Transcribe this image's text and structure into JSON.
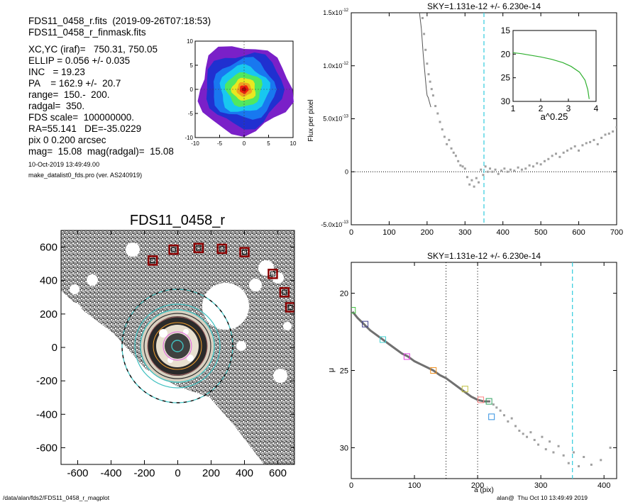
{
  "info": {
    "line1": "FDS11_0458_r.fits  (2019-09-26T07:18:53)",
    "line2": "FDS11_0458_r_finmask.fits",
    "line3": "XC,YC (iraf)=   750.31, 750.05",
    "line4": "ELLIP = 0.056 +/- 0.035",
    "line5": "INC   = 19.23",
    "line6": "PA    = 162.9 +/-  20.7",
    "line7": "range=  150.-  200.",
    "line8": "radgal=  350.",
    "line9": "FDS scale=  100000000.",
    "line10": "RA=55.141   DE=-35.0229",
    "line11": "pix 0 0.200 arcsec",
    "line12": "mag=  15.08  mag(radgal)=  15.08",
    "date": "10-Oct-2019 13:49:49.00",
    "prog": "make_datalist0_fds.pro (ver. AS240919)"
  },
  "footer": {
    "left": "/data/alan/fds2/FDS11_0458_r_magplot",
    "right": "alan@  Thu Oct 10 13:49:49 2019"
  },
  "chart_data": [
    {
      "id": "thumb",
      "type": "heatmap",
      "xlim": [
        -10,
        10
      ],
      "ylim": [
        -10,
        10
      ],
      "xticks": [
        "-10",
        "-5",
        "0",
        "5",
        "10"
      ],
      "yticks": [
        "10",
        "5",
        "0",
        "-5",
        "-10"
      ],
      "levels": [
        "#7a20c8",
        "#2030d0",
        "#1878f0",
        "#18c8f0",
        "#50e860",
        "#e8e820",
        "#f0a020",
        "#f02010",
        "#b00000"
      ]
    },
    {
      "id": "image",
      "type": "heatmap",
      "title": "FDS11_0458_r",
      "xlim": [
        -700,
        700
      ],
      "ylim": [
        -700,
        700
      ],
      "xticks": [
        "-600",
        "-400",
        "-200",
        "0",
        "200",
        "400",
        "600"
      ],
      "yticks": [
        "600",
        "400",
        "200",
        "0",
        "-200",
        "-400",
        "-600"
      ]
    },
    {
      "id": "sky",
      "type": "scatter",
      "title": "SKY=1.131e-12 +/- 6.230e-14",
      "ylabel": "Flux per pixel",
      "xlim": [
        0,
        700
      ],
      "ylim": [
        -5e-13,
        1.5e-12
      ],
      "xticks": [
        "0",
        "100",
        "200",
        "300",
        "400",
        "500",
        "600",
        "700"
      ],
      "yticks": [
        {
          "value": 1.5e-12,
          "mant": "1.5x10",
          "exp": "-12"
        },
        {
          "value": 1e-12,
          "mant": "1.0x10",
          "exp": "-12"
        },
        {
          "value": 5e-13,
          "mant": "5.0x10",
          "exp": "-13"
        },
        {
          "value": 0,
          "mant": "0",
          "exp": ""
        },
        {
          "value": -5e-13,
          "mant": "-5.0x10",
          "exp": "-13"
        }
      ],
      "vline": 350,
      "line": [
        [
          180,
          1.5e-12
        ],
        [
          185,
          1.35e-12
        ],
        [
          190,
          1.1e-12
        ],
        [
          195,
          9e-13
        ],
        [
          198,
          7.8e-13
        ],
        [
          200,
          7.2e-13
        ],
        [
          203,
          7e-13
        ],
        [
          206,
          6.6e-13
        ],
        [
          210,
          6.1e-13
        ]
      ],
      "points": [
        [
          188,
          1.45e-12
        ],
        [
          192,
          1.3e-12
        ],
        [
          196,
          1.15e-12
        ],
        [
          200,
          1.02e-12
        ],
        [
          204,
          9.2e-13
        ],
        [
          208,
          8.5e-13
        ],
        [
          212,
          7.8e-13
        ],
        [
          216,
          7.2e-13
        ],
        [
          222,
          6.2e-13
        ],
        [
          228,
          5.5e-13
        ],
        [
          234,
          4.7e-13
        ],
        [
          240,
          4e-13
        ],
        [
          246,
          3.3e-13
        ],
        [
          252,
          2.6e-13
        ],
        [
          258,
          3e-13
        ],
        [
          264,
          2.2e-13
        ],
        [
          270,
          1.8e-13
        ],
        [
          276,
          1.5e-13
        ],
        [
          282,
          1e-13
        ],
        [
          288,
          6e-14
        ],
        [
          294,
          5e-14
        ],
        [
          300,
          3e-14
        ],
        [
          306,
          -5e-14
        ],
        [
          312,
          -1.2e-13
        ],
        [
          318,
          -8e-14
        ],
        [
          324,
          -1.4e-13
        ],
        [
          330,
          -6e-14
        ],
        [
          336,
          -1e-13
        ],
        [
          342,
          2e-14
        ],
        [
          348,
          -3e-14
        ],
        [
          354,
          5e-14
        ],
        [
          360,
          0.0
        ],
        [
          366,
          3e-14
        ],
        [
          372,
          0.0
        ],
        [
          380,
          2e-14
        ],
        [
          388,
          -2e-14
        ],
        [
          396,
          1e-14
        ],
        [
          404,
          3e-14
        ],
        [
          412,
          0.0
        ],
        [
          420,
          2e-14
        ],
        [
          430,
          1e-14
        ],
        [
          440,
          4e-14
        ],
        [
          450,
          2e-14
        ],
        [
          460,
          3e-14
        ],
        [
          470,
          6e-14
        ],
        [
          480,
          5e-14
        ],
        [
          490,
          8e-14
        ],
        [
          500,
          7e-14
        ],
        [
          510,
          1e-13
        ],
        [
          520,
          1.2e-13
        ],
        [
          530,
          1.5e-13
        ],
        [
          540,
          1.7e-13
        ],
        [
          550,
          1.4e-13
        ],
        [
          560,
          1.8e-13
        ],
        [
          570,
          2e-13
        ],
        [
          580,
          2.2e-13
        ],
        [
          590,
          2.4e-13
        ],
        [
          600,
          2e-13
        ],
        [
          610,
          2.5e-13
        ],
        [
          620,
          2.7e-13
        ],
        [
          630,
          2.8e-13
        ],
        [
          640,
          3e-13
        ],
        [
          650,
          2.6e-13
        ],
        [
          660,
          3.2e-13
        ],
        [
          670,
          3.5e-13
        ],
        [
          680,
          3.6e-13
        ],
        [
          690,
          3.8e-13
        ],
        [
          700,
          4.2e-13
        ]
      ],
      "inset": {
        "xlabel": "a^0.25",
        "xlim": [
          1,
          4
        ],
        "ylim": [
          15,
          30
        ],
        "xticks": [
          "1",
          "2",
          "3",
          "4"
        ],
        "yticks": [
          "15",
          "20",
          "25",
          "30"
        ],
        "curve": [
          [
            1.0,
            19.7
          ],
          [
            1.3,
            19.9
          ],
          [
            1.6,
            20.2
          ],
          [
            2.0,
            20.6
          ],
          [
            2.4,
            21.1
          ],
          [
            2.8,
            21.8
          ],
          [
            3.1,
            22.6
          ],
          [
            3.4,
            23.8
          ],
          [
            3.6,
            25.5
          ],
          [
            3.7,
            27.5
          ],
          [
            3.75,
            29.5
          ]
        ]
      }
    },
    {
      "id": "profile",
      "type": "line",
      "title": "SKY=1.131e-12 +/- 6.230e-14",
      "xlabel": "a (pix)",
      "ylabel": "μ",
      "xlim": [
        0,
        420
      ],
      "ylim": [
        18,
        32
      ],
      "xticks": [
        "0",
        "100",
        "200",
        "300",
        "400"
      ],
      "yticks": [
        "20",
        "25",
        "30"
      ],
      "vlines_dotted": [
        150,
        200
      ],
      "vline_dashed": 350,
      "curve": [
        [
          2,
          21.2
        ],
        [
          10,
          21.6
        ],
        [
          20,
          22.0
        ],
        [
          30,
          22.4
        ],
        [
          40,
          22.7
        ],
        [
          50,
          23.0
        ],
        [
          60,
          23.3
        ],
        [
          70,
          23.6
        ],
        [
          80,
          23.9
        ],
        [
          90,
          24.1
        ],
        [
          100,
          24.4
        ],
        [
          110,
          24.6
        ],
        [
          120,
          24.8
        ],
        [
          130,
          25.0
        ],
        [
          140,
          25.3
        ],
        [
          150,
          25.5
        ],
        [
          160,
          25.8
        ],
        [
          170,
          26.1
        ],
        [
          180,
          26.4
        ],
        [
          190,
          26.7
        ],
        [
          200,
          26.9
        ],
        [
          210,
          27.0
        ],
        [
          220,
          27.0
        ]
      ],
      "points": [
        [
          225,
          27.2
        ],
        [
          230,
          27.4
        ],
        [
          236,
          27.6
        ],
        [
          242,
          27.9
        ],
        [
          248,
          28.3
        ],
        [
          254,
          28.1
        ],
        [
          260,
          28.6
        ],
        [
          266,
          28.9
        ],
        [
          272,
          29.1
        ],
        [
          278,
          29.3
        ],
        [
          284,
          29.0
        ],
        [
          290,
          29.5
        ],
        [
          296,
          29.8
        ],
        [
          302,
          29.3
        ],
        [
          308,
          30.1
        ],
        [
          314,
          29.6
        ],
        [
          320,
          30.3
        ],
        [
          328,
          29.9
        ],
        [
          336,
          30.5
        ],
        [
          344,
          31.0
        ],
        [
          352,
          30.3
        ],
        [
          360,
          31.2
        ],
        [
          368,
          30.6
        ],
        [
          380,
          31.1
        ],
        [
          395,
          30.8
        ],
        [
          410,
          30.0
        ]
      ],
      "markers": [
        {
          "x": 2,
          "y": 21.1,
          "color": "#40c040"
        },
        {
          "x": 22,
          "y": 22.0,
          "color": "#404090"
        },
        {
          "x": 50,
          "y": 23.0,
          "color": "#40d0d0"
        },
        {
          "x": 88,
          "y": 24.1,
          "color": "#e040e0"
        },
        {
          "x": 130,
          "y": 25.0,
          "color": "#f09020"
        },
        {
          "x": 180,
          "y": 26.2,
          "color": "#c0c040"
        },
        {
          "x": 205,
          "y": 26.9,
          "color": "#ff8080"
        },
        {
          "x": 218,
          "y": 27.0,
          "color": "#30a060"
        },
        {
          "x": 222,
          "y": 28.0,
          "color": "#3090e0"
        }
      ]
    }
  ]
}
